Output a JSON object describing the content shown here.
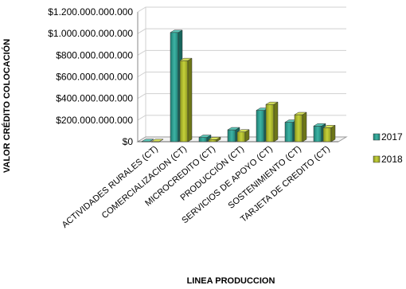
{
  "chart_data": {
    "type": "bar",
    "title": "",
    "xlabel": "LINEA PRODUCCION",
    "ylabel": "VALOR CRÉDITO COLOCACIÓN",
    "ylim": [
      0,
      1200000000000
    ],
    "yticks": [
      {
        "value": 0,
        "label": "$0"
      },
      {
        "value": 200000000000,
        "label": "$200.000.000.000"
      },
      {
        "value": 400000000000,
        "label": "$400.000.000.000"
      },
      {
        "value": 600000000000,
        "label": "$600.000.000.000"
      },
      {
        "value": 800000000000,
        "label": "$800.000.000.000"
      },
      {
        "value": 1000000000000,
        "label": "$1.000.000.000.000"
      },
      {
        "value": 1200000000000,
        "label": "$1.200.000.000.000"
      }
    ],
    "grid": true,
    "legend_position": "right",
    "categories": [
      "ACTIVIDADES RURALES (CT)",
      "COMERCIALIZACION (CT)",
      "MICROCREDITO (CT)",
      "PRODUCCIÓN (CT)",
      "SERVICIOS DE APOYO (CT)",
      "SOSTENIMIENTO (CT)",
      "TARJETA DE CREDITO (CT)"
    ],
    "series": [
      {
        "name": "2017",
        "color": "#2a9d8f",
        "values": [
          2000000000,
          1010000000000,
          40000000000,
          110000000000,
          290000000000,
          180000000000,
          145000000000
        ]
      },
      {
        "name": "2018",
        "color": "#a9b52a",
        "values": [
          1000000000,
          750000000000,
          20000000000,
          90000000000,
          345000000000,
          250000000000,
          130000000000
        ]
      }
    ]
  }
}
